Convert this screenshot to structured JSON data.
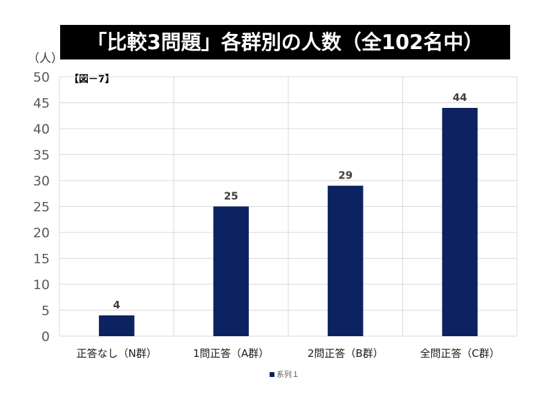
{
  "title": "「比較3問題」各群別の人数（全102名中）",
  "figure_label": "【図－7】",
  "y_unit_label": "（人）",
  "colors": {
    "bar": "#0d2260",
    "grid": "#d9d9d9",
    "title_bg": "#000000",
    "title_text": "#ffffff",
    "axis_text": "#595959",
    "data_label": "#404040"
  },
  "chart_data": {
    "type": "bar",
    "title": "「比較3問題」各群別の人数（全102名中）",
    "ylabel": "（人）",
    "xlabel": "",
    "categories": [
      "正答なし（N群）",
      "1問正答（A群）",
      "2問正答（B群）",
      "全問正答（C群）"
    ],
    "series": [
      {
        "name": "系列１",
        "values": [
          4,
          25,
          29,
          44
        ]
      }
    ],
    "ylim": [
      0,
      50
    ],
    "yticks": [
      0,
      5,
      10,
      15,
      20,
      25,
      30,
      35,
      40,
      45,
      50
    ],
    "grid": true,
    "data_labels": true,
    "legend": {
      "position": "bottom",
      "entries": [
        "系列１"
      ]
    }
  }
}
